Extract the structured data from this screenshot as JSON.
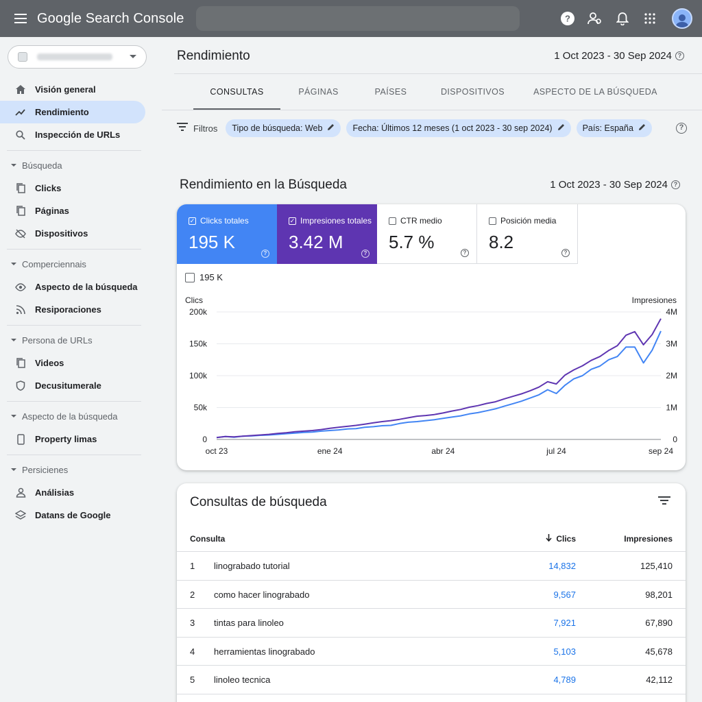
{
  "app": {
    "title": "Google Search Console"
  },
  "colors": {
    "clicks": "#4285f4",
    "impressions": "#5e35b1",
    "active_nav": "#d2e3fc",
    "link_blue": "#1a73e8"
  },
  "sidebar": {
    "items": [
      {
        "label": "Visión general",
        "icon": "home-icon"
      },
      {
        "label": "Rendimiento",
        "icon": "trending-up-icon",
        "active": true
      },
      {
        "label": "Inspección de URLs",
        "icon": "search-icon"
      }
    ],
    "sections": [
      {
        "label": "Búsqueda",
        "items": [
          {
            "label": "Clicks",
            "icon": "copy-icon"
          },
          {
            "label": "Páginas",
            "icon": "copy-icon"
          },
          {
            "label": "Dispositivos",
            "icon": "visibility-off-icon"
          }
        ]
      },
      {
        "label": "Comperciennais",
        "items": [
          {
            "label": "Aspecto de la búsqueda",
            "icon": "eye-icon"
          },
          {
            "label": "Resiporaciones",
            "icon": "rss-icon"
          }
        ]
      },
      {
        "label": "Persona de URLs",
        "items": [
          {
            "label": "Videos",
            "icon": "copy-icon"
          },
          {
            "label": "Decusitumerale",
            "icon": "shield-icon"
          }
        ]
      },
      {
        "label": "Aspecto de la búsqueda",
        "items": [
          {
            "label": "Property limas",
            "icon": "phone-icon"
          }
        ]
      },
      {
        "label": "Persicienes",
        "items": [
          {
            "label": "Análisias",
            "icon": "person-icon"
          },
          {
            "label": "Datans de Google",
            "icon": "layers-icon"
          }
        ]
      }
    ]
  },
  "main": {
    "title": "Rendimiento",
    "date_range": "1 Oct 2023 - 30 Sep 2024",
    "tabs": [
      {
        "label": "CONSULTAS",
        "active": true
      },
      {
        "label": "PÁGINAS"
      },
      {
        "label": "PAÍSES"
      },
      {
        "label": "DISPOSITIVOS"
      },
      {
        "label": "ASPECTO DE LA BÚSQUEDA"
      }
    ],
    "filters": {
      "label": "Filtros",
      "chips": [
        "Tipo de búsqueda: Web",
        "Fecha: Últimos 12 meses (1 oct 2023 - 30 sep 2024)",
        "País: España"
      ]
    },
    "performance": {
      "title": "Rendimiento en la Búsqueda",
      "date_range": "1 Oct 2023 - 30 Sep 2024",
      "metrics": [
        {
          "label": "Clicks totales",
          "value": "195 K",
          "checked": true
        },
        {
          "label": "Impresiones totales",
          "value": "3.42 M",
          "checked": true
        },
        {
          "label": "CTR medio",
          "value": "5.7 %",
          "checked": false
        },
        {
          "label": "Posición media",
          "value": "8.2",
          "checked": false
        }
      ],
      "legend_checkbox_label": "195 K"
    },
    "queries": {
      "title": "Consultas de búsqueda",
      "columns": {
        "query": "Consulta",
        "clicks": "Clics",
        "impressions": "Impresiones"
      },
      "rows": [
        {
          "n": "1",
          "query": "linograbado tutorial",
          "clicks": "14,832",
          "impressions": "125,410"
        },
        {
          "n": "2",
          "query": "como hacer linograbado",
          "clicks": "9,567",
          "impressions": "98,201"
        },
        {
          "n": "3",
          "query": "tintas para linoleo",
          "clicks": "7,921",
          "impressions": "67,890"
        },
        {
          "n": "4",
          "query": "herramientas linograbado",
          "clicks": "5,103",
          "impressions": "45,678"
        },
        {
          "n": "5",
          "query": "linoleo tecnica",
          "clicks": "4,789",
          "impressions": "42,112"
        }
      ]
    }
  },
  "chart_data": {
    "type": "line",
    "ylabel_left": "Clics",
    "ylabel_right": "Impresiones",
    "yticks_left": [
      "0",
      "50k",
      "100k",
      "150k",
      "200k"
    ],
    "yticks_right": [
      "0",
      "1M",
      "2M",
      "3M",
      "4M"
    ],
    "xticks": [
      "oct 23",
      "ene 24",
      "abr 24",
      "jul 24",
      "sep 24"
    ],
    "x_tick_positions": [
      0,
      13,
      26,
      39,
      51
    ],
    "ylim_left": [
      0,
      200000
    ],
    "ylim_right": [
      0,
      4000000
    ],
    "grid": true,
    "series": [
      {
        "name": "Clics",
        "axis": "left",
        "color": "#4285f4",
        "values": [
          3000,
          4500,
          3500,
          5000,
          5500,
          6500,
          7000,
          8000,
          9000,
          10000,
          11000,
          11500,
          13000,
          14000,
          15000,
          16500,
          17000,
          19000,
          20000,
          21500,
          22000,
          25000,
          27000,
          28000,
          29500,
          31000,
          33000,
          35000,
          37000,
          40000,
          42000,
          45000,
          48000,
          52000,
          56000,
          60000,
          65000,
          70000,
          78000,
          72000,
          85000,
          95000,
          100000,
          110000,
          115000,
          125000,
          130000,
          145000,
          145000,
          120000,
          140000,
          170000
        ]
      },
      {
        "name": "Impresiones",
        "axis": "right",
        "color": "#5e35b1",
        "values": [
          60000,
          90000,
          80000,
          100000,
          120000,
          140000,
          160000,
          190000,
          210000,
          240000,
          260000,
          280000,
          310000,
          350000,
          380000,
          410000,
          440000,
          480000,
          520000,
          560000,
          590000,
          630000,
          680000,
          730000,
          750000,
          780000,
          830000,
          890000,
          940000,
          1010000,
          1060000,
          1130000,
          1180000,
          1270000,
          1350000,
          1430000,
          1530000,
          1640000,
          1810000,
          1740000,
          2020000,
          2180000,
          2310000,
          2480000,
          2600000,
          2790000,
          2940000,
          3270000,
          3380000,
          2970000,
          3290000,
          3790000
        ]
      }
    ]
  }
}
